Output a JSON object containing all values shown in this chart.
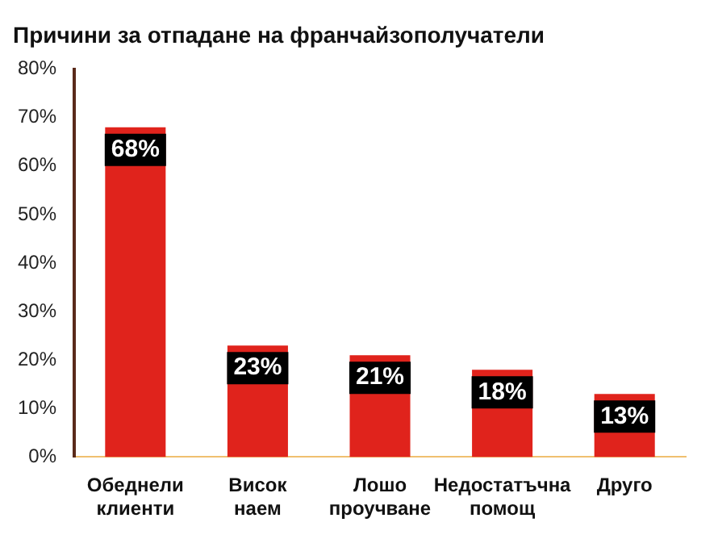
{
  "chart_data": {
    "type": "bar",
    "title": "Причини за отпадане на франчайзополучатели",
    "categories": [
      "Обеднели клиенти",
      "Висок наем",
      "Лошо проучване",
      "Недостатъчна помощ",
      "Друго"
    ],
    "values": [
      68,
      23,
      21,
      18,
      13
    ],
    "color": "#e0231c",
    "value_labels": [
      "68%",
      "23%",
      "21%",
      "18%",
      "13%"
    ],
    "ylim": [
      0,
      80
    ],
    "yticks": [
      {
        "value": 0,
        "label": "0%"
      },
      {
        "value": 10,
        "label": "10%"
      },
      {
        "value": 20,
        "label": "20%"
      },
      {
        "value": 30,
        "label": "30%"
      },
      {
        "value": 40,
        "label": "40%"
      },
      {
        "value": 50,
        "label": "50%"
      },
      {
        "value": 60,
        "label": "60%"
      },
      {
        "value": 70,
        "label": "70%"
      },
      {
        "value": 80,
        "label": "80%"
      }
    ],
    "grid": false
  }
}
